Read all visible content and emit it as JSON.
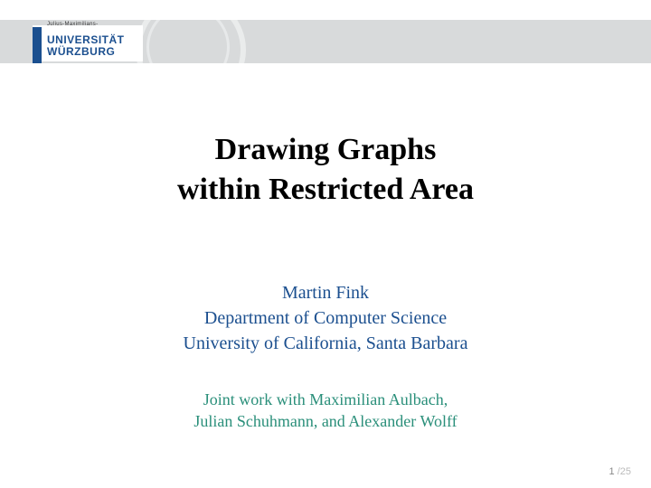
{
  "logo": {
    "pretext": "Julius-Maximilians-",
    "line1": "UNIVERSITÄT",
    "line2": "WÜRZBURG"
  },
  "title": {
    "line1": "Drawing Graphs",
    "line2": "within Restricted Area"
  },
  "author": {
    "name": "Martin Fink",
    "dept": "Department of Computer Science",
    "univ": "University of California, Santa Barbara"
  },
  "joint": {
    "line1": "Joint work with Maximilian Aulbach,",
    "line2": "Julian Schuhmann, and Alexander Wolff"
  },
  "page": {
    "current": "1",
    "total": "/25"
  },
  "colors": {
    "band": "#d8dadb",
    "brand": "#1b4f8f",
    "joint": "#2a8f7a"
  }
}
